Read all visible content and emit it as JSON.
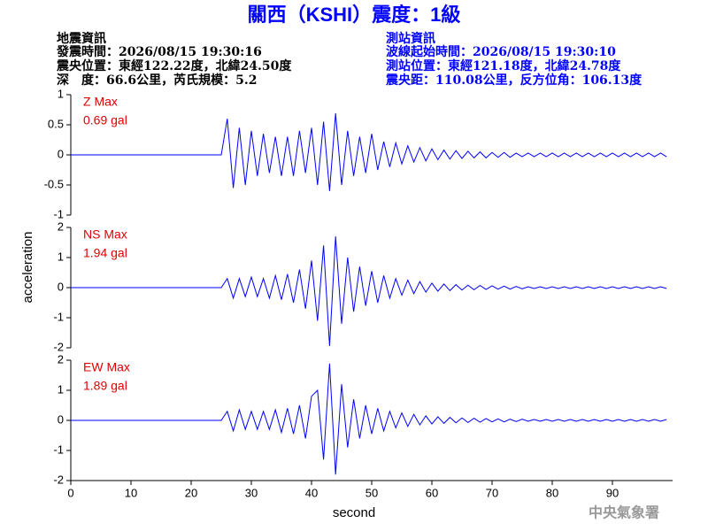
{
  "header": {
    "title": "關西（KSHI）震度：1級",
    "quake": [
      "地震資訊",
      "發震時間：2026/08/15 19:30:16",
      "震央位置：東經122.22度，北緯24.50度",
      "深　度：66.6公里，芮氏規模：5.2"
    ],
    "station": [
      "測站資訊",
      "波線起始時間：2026/08/15 19:30:10",
      "測站位置：東經121.18度，北緯24.78度",
      "震央距：110.08公里，反方位角：106.13度"
    ]
  },
  "axes": {
    "xlabel": "second",
    "ylabel": "acceleration"
  },
  "footer": "中央氣象署",
  "chart_data": [
    {
      "type": "line",
      "color": "#0000ff",
      "annotations": [
        "Z Max",
        "0.69 gal"
      ],
      "xlim": [
        0,
        100
      ],
      "ylim": [
        -1,
        1
      ],
      "yticks": [
        -1,
        -0.5,
        0,
        0.5,
        1
      ],
      "x": [
        0,
        25,
        26,
        27,
        28,
        29,
        30,
        31,
        32,
        33,
        34,
        35,
        36,
        37,
        38,
        39,
        40,
        41,
        42,
        43,
        44,
        45,
        46,
        47,
        48,
        49,
        50,
        51,
        52,
        53,
        54,
        55,
        56,
        57,
        58,
        59,
        60,
        61,
        62,
        63,
        64,
        65,
        66,
        67,
        68,
        69,
        70,
        71,
        72,
        73,
        74,
        75,
        76,
        77,
        78,
        79,
        80,
        81,
        82,
        83,
        84,
        85,
        86,
        87,
        88,
        89,
        90,
        91,
        92,
        93,
        94,
        95,
        96,
        97,
        98,
        99
      ],
      "values": [
        0,
        0,
        0.6,
        -0.55,
        0.45,
        -0.5,
        0.4,
        -0.35,
        0.35,
        -0.3,
        0.3,
        -0.35,
        0.3,
        -0.35,
        0.4,
        -0.3,
        0.45,
        -0.5,
        0.55,
        -0.6,
        0.69,
        -0.5,
        0.4,
        -0.35,
        0.3,
        -0.3,
        0.35,
        -0.25,
        0.22,
        -0.2,
        0.2,
        -0.15,
        0.15,
        -0.12,
        0.12,
        -0.1,
        0.1,
        -0.08,
        0.08,
        -0.07,
        0.07,
        -0.06,
        0.06,
        -0.05,
        0.05,
        -0.05,
        0.04,
        -0.04,
        0.04,
        -0.04,
        0.03,
        -0.03,
        0.03,
        -0.03,
        0.03,
        -0.03,
        0.03,
        -0.03,
        0.03,
        -0.03,
        0.03,
        -0.03,
        0.03,
        -0.03,
        0.03,
        -0.03,
        0.03,
        -0.03,
        0.03,
        -0.03,
        0.03,
        -0.03,
        0.03,
        -0.03,
        0.03,
        -0.03
      ]
    },
    {
      "type": "line",
      "color": "#0000ff",
      "annotations": [
        "NS Max",
        "1.94 gal"
      ],
      "xlim": [
        0,
        100
      ],
      "ylim": [
        -2,
        2
      ],
      "yticks": [
        -2,
        -1,
        0,
        1,
        2
      ],
      "x": [
        0,
        25,
        26,
        27,
        28,
        29,
        30,
        31,
        32,
        33,
        34,
        35,
        36,
        37,
        38,
        39,
        40,
        41,
        42,
        43,
        44,
        45,
        46,
        47,
        48,
        49,
        50,
        51,
        52,
        53,
        54,
        55,
        56,
        57,
        58,
        59,
        60,
        61,
        62,
        63,
        64,
        65,
        66,
        67,
        68,
        69,
        70,
        71,
        72,
        73,
        74,
        75,
        76,
        77,
        78,
        79,
        80,
        81,
        82,
        83,
        84,
        85,
        86,
        87,
        88,
        89,
        90,
        91,
        92,
        93,
        94,
        95,
        96,
        97,
        98,
        99
      ],
      "values": [
        0,
        0,
        0.3,
        -0.35,
        0.3,
        -0.3,
        0.35,
        -0.3,
        0.3,
        -0.35,
        0.4,
        -0.4,
        0.45,
        -0.5,
        0.6,
        -0.7,
        0.9,
        -1.1,
        1.4,
        -1.94,
        1.7,
        -1.2,
        1,
        -0.8,
        0.7,
        -0.6,
        0.55,
        -0.5,
        0.4,
        -0.35,
        0.3,
        -0.25,
        0.25,
        -0.2,
        0.2,
        -0.15,
        0.15,
        -0.12,
        0.12,
        -0.1,
        0.1,
        -0.08,
        0.08,
        -0.07,
        0.07,
        -0.06,
        0.06,
        -0.05,
        0.05,
        -0.05,
        0.04,
        -0.04,
        0.03,
        -0.03,
        0.03,
        -0.03,
        0.03,
        -0.03,
        0.03,
        -0.03,
        0.03,
        -0.03,
        0.03,
        -0.03,
        0.03,
        -0.03,
        0.03,
        -0.03,
        0.03,
        -0.03,
        0.03,
        -0.03,
        0.03,
        -0.03,
        0.03,
        -0.03
      ]
    },
    {
      "type": "line",
      "color": "#0000ff",
      "annotations": [
        "EW Max",
        "1.89 gal"
      ],
      "xlim": [
        0,
        100
      ],
      "ylim": [
        -2,
        2
      ],
      "yticks": [
        -2,
        -1,
        0,
        1,
        2
      ],
      "xticks": [
        0,
        10,
        20,
        30,
        40,
        50,
        60,
        70,
        80,
        90
      ],
      "x": [
        0,
        25,
        26,
        27,
        28,
        29,
        30,
        31,
        32,
        33,
        34,
        35,
        36,
        37,
        38,
        39,
        40,
        41,
        42,
        43,
        44,
        45,
        46,
        47,
        48,
        49,
        50,
        51,
        52,
        53,
        54,
        55,
        56,
        57,
        58,
        59,
        60,
        61,
        62,
        63,
        64,
        65,
        66,
        67,
        68,
        69,
        70,
        71,
        72,
        73,
        74,
        75,
        76,
        77,
        78,
        79,
        80,
        81,
        82,
        83,
        84,
        85,
        86,
        87,
        88,
        89,
        90,
        91,
        92,
        93,
        94,
        95,
        96,
        97,
        98,
        99
      ],
      "values": [
        0,
        0,
        0.3,
        -0.35,
        0.35,
        -0.3,
        0.3,
        -0.3,
        0.3,
        -0.3,
        0.35,
        -0.4,
        0.4,
        -0.45,
        0.5,
        -0.6,
        0.8,
        1.0,
        -1.3,
        1.89,
        -1.8,
        1.2,
        -0.9,
        0.7,
        -0.6,
        0.5,
        -0.45,
        0.4,
        -0.35,
        0.3,
        -0.25,
        0.25,
        -0.2,
        0.2,
        -0.15,
        0.15,
        -0.12,
        0.12,
        -0.1,
        0.1,
        -0.08,
        0.08,
        -0.07,
        0.07,
        -0.06,
        0.06,
        -0.05,
        0.05,
        -0.05,
        0.04,
        -0.04,
        0.04,
        -0.03,
        0.03,
        -0.03,
        0.03,
        -0.03,
        0.03,
        -0.03,
        0.03,
        -0.03,
        0.03,
        -0.03,
        0.03,
        -0.03,
        0.03,
        -0.03,
        0.03,
        -0.03,
        0.03,
        -0.03,
        0.03,
        -0.03,
        0.03,
        -0.03,
        0.03
      ]
    }
  ]
}
